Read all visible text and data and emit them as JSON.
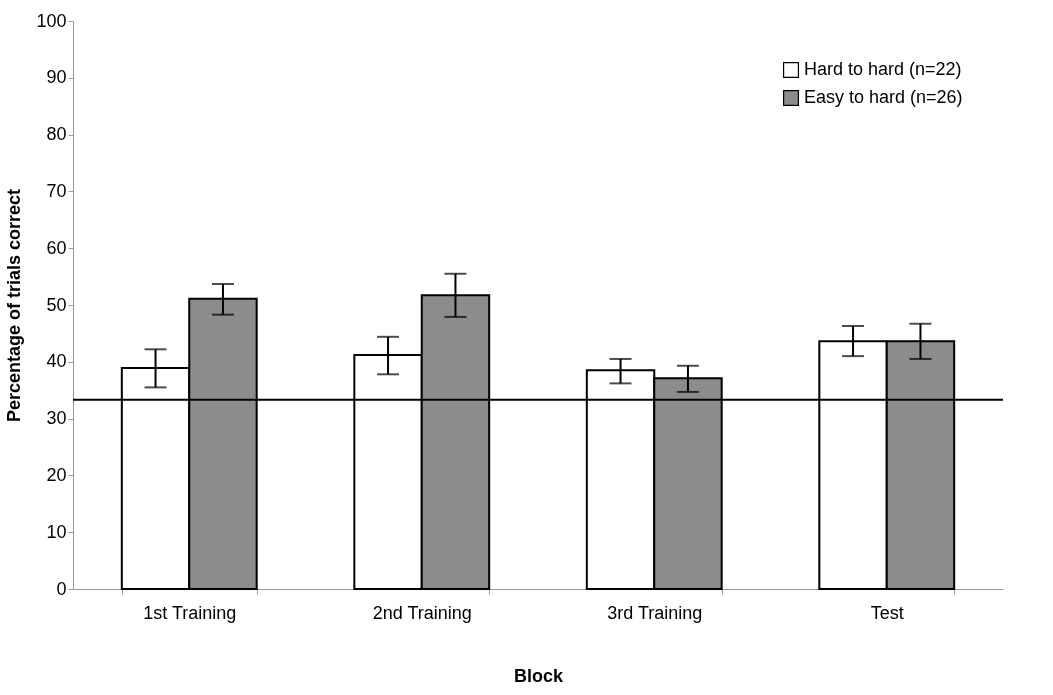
{
  "chart_data": {
    "type": "bar",
    "xlabel": "Block",
    "ylabel": "Percentage of trials correct",
    "categories": [
      "1st Training",
      "2nd Training",
      "3rd Training",
      "Test"
    ],
    "series": [
      {
        "name": "Hard to hard (n=22)",
        "color": "#ffffff",
        "values": [
          38.9,
          41.2,
          38.5,
          43.6
        ],
        "errors": [
          [
            35.5,
            42.2
          ],
          [
            37.8,
            44.4
          ],
          [
            36.2,
            40.5
          ],
          [
            41.0,
            46.3
          ]
        ]
      },
      {
        "name": "Easy to hard (n=26)",
        "color": "#8c8c8c",
        "values": [
          51.1,
          51.7,
          37.1,
          43.6
        ],
        "errors": [
          [
            48.3,
            53.7
          ],
          [
            47.9,
            55.5
          ],
          [
            34.7,
            39.3
          ],
          [
            40.5,
            46.7
          ]
        ]
      }
    ],
    "ylim": [
      0,
      100
    ],
    "yticks": [
      0,
      10,
      20,
      30,
      40,
      50,
      60,
      70,
      80,
      90,
      100
    ],
    "ref_lines": [
      {
        "axis": "y",
        "value": 33.3,
        "color": "#000000"
      }
    ],
    "grid": false,
    "legend": "top right"
  }
}
